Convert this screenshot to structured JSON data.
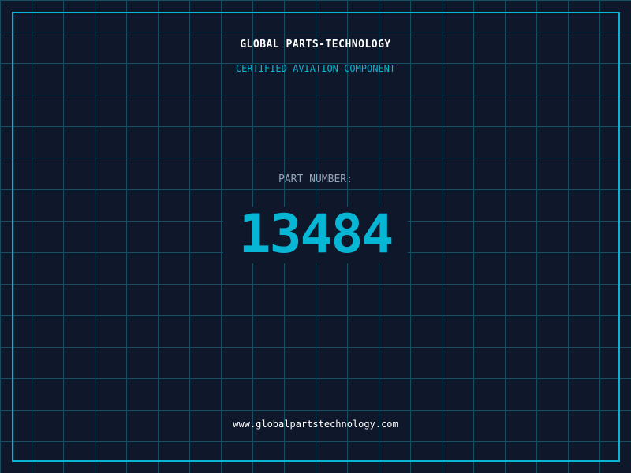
{
  "header": {
    "company": "GLOBAL PARTS-TECHNOLOGY",
    "subtitle": "CERTIFIED AVIATION COMPONENT"
  },
  "part": {
    "label": "PART NUMBER:",
    "number": "13484"
  },
  "footer": {
    "url": "www.globalpartstechnology.com"
  },
  "colors": {
    "background": "#0f172a",
    "accent": "#06b6d4",
    "grid": "#164e63"
  }
}
